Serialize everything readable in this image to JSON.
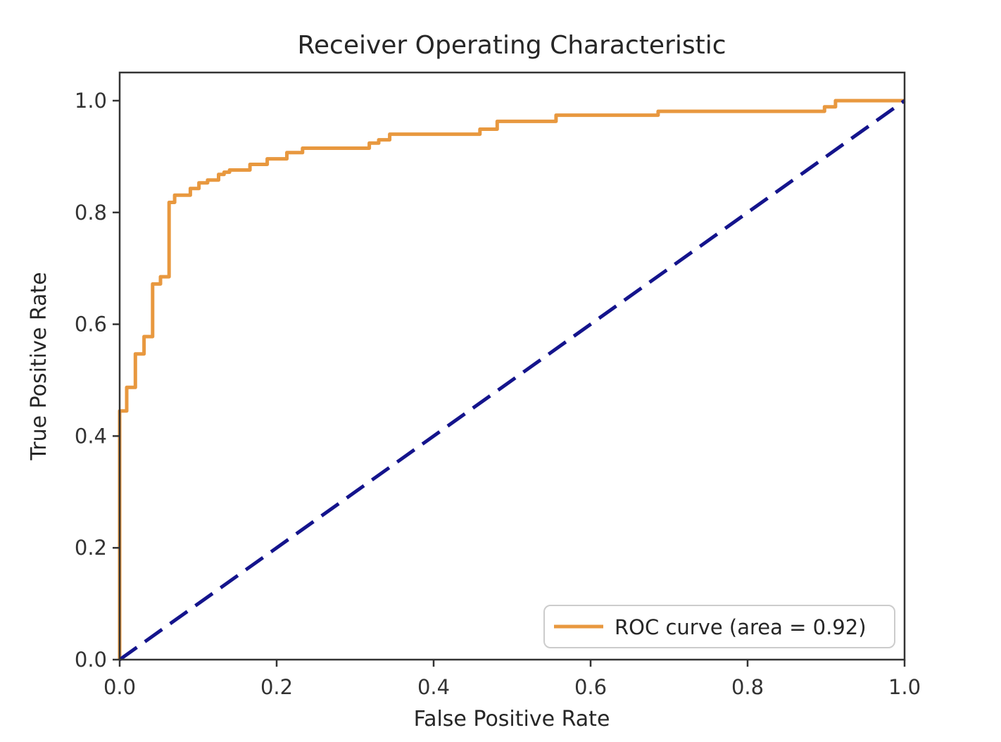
{
  "figure": {
    "title": "Receiver Operating Characteristic",
    "xlabel": "False Positive Rate",
    "ylabel": "True Positive Rate",
    "legend": {
      "label": "ROC curve (area = 0.92)"
    },
    "colors": {
      "roc_curve": "#e8983f",
      "diagonal": "#14148c",
      "spine": "#333333",
      "text": "#262626",
      "legend_border": "#cccccc",
      "background": "#ffffff"
    }
  },
  "chart_data": {
    "type": "line",
    "title": "Receiver Operating Characteristic",
    "xlabel": "False Positive Rate",
    "ylabel": "True Positive Rate",
    "xlim": [
      0.0,
      1.0
    ],
    "ylim": [
      0.0,
      1.05
    ],
    "x_ticks": [
      0.0,
      0.2,
      0.4,
      0.6,
      0.8,
      1.0
    ],
    "x_tick_labels": [
      "0.0",
      "0.2",
      "0.4",
      "0.6",
      "0.8",
      "1.0"
    ],
    "y_ticks": [
      0.0,
      0.2,
      0.4,
      0.6,
      0.8,
      1.0
    ],
    "y_tick_labels": [
      "0.0",
      "0.2",
      "0.4",
      "0.6",
      "0.8",
      "1.0"
    ],
    "grid": false,
    "legend_position": "lower right",
    "auc": 0.92,
    "series": [
      {
        "name": "ROC curve (area = 0.92)",
        "style": "solid",
        "color": "#e8983f",
        "linewidth": 5,
        "points": [
          [
            0.0,
            0.0
          ],
          [
            0.0,
            0.445
          ],
          [
            0.009,
            0.445
          ],
          [
            0.009,
            0.487
          ],
          [
            0.02,
            0.487
          ],
          [
            0.02,
            0.547
          ],
          [
            0.031,
            0.547
          ],
          [
            0.031,
            0.578
          ],
          [
            0.042,
            0.578
          ],
          [
            0.042,
            0.672
          ],
          [
            0.052,
            0.672
          ],
          [
            0.052,
            0.685
          ],
          [
            0.063,
            0.685
          ],
          [
            0.063,
            0.818
          ],
          [
            0.07,
            0.818
          ],
          [
            0.07,
            0.831
          ],
          [
            0.09,
            0.831
          ],
          [
            0.09,
            0.843
          ],
          [
            0.101,
            0.843
          ],
          [
            0.101,
            0.853
          ],
          [
            0.112,
            0.853
          ],
          [
            0.112,
            0.858
          ],
          [
            0.126,
            0.858
          ],
          [
            0.126,
            0.868
          ],
          [
            0.133,
            0.868
          ],
          [
            0.133,
            0.872
          ],
          [
            0.14,
            0.872
          ],
          [
            0.14,
            0.876
          ],
          [
            0.166,
            0.876
          ],
          [
            0.166,
            0.886
          ],
          [
            0.188,
            0.886
          ],
          [
            0.188,
            0.896
          ],
          [
            0.213,
            0.896
          ],
          [
            0.213,
            0.907
          ],
          [
            0.233,
            0.907
          ],
          [
            0.233,
            0.915
          ],
          [
            0.318,
            0.915
          ],
          [
            0.318,
            0.924
          ],
          [
            0.33,
            0.924
          ],
          [
            0.33,
            0.93
          ],
          [
            0.344,
            0.93
          ],
          [
            0.344,
            0.94
          ],
          [
            0.459,
            0.94
          ],
          [
            0.459,
            0.949
          ],
          [
            0.481,
            0.949
          ],
          [
            0.481,
            0.963
          ],
          [
            0.556,
            0.963
          ],
          [
            0.556,
            0.974
          ],
          [
            0.686,
            0.974
          ],
          [
            0.686,
            0.981
          ],
          [
            0.898,
            0.981
          ],
          [
            0.898,
            0.989
          ],
          [
            0.912,
            0.989
          ],
          [
            0.912,
            1.0
          ],
          [
            1.0,
            1.0
          ]
        ]
      },
      {
        "name": "chance-diagonal",
        "style": "dashed",
        "color": "#14148c",
        "linewidth": 5,
        "points": [
          [
            0.0,
            0.0
          ],
          [
            1.0,
            1.0
          ]
        ]
      }
    ]
  }
}
